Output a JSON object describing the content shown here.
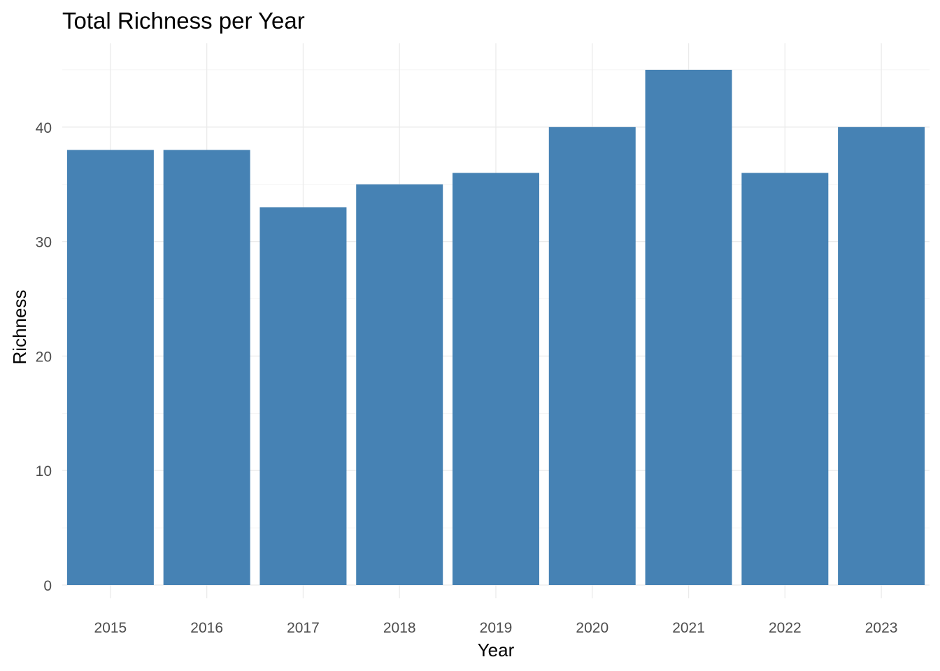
{
  "chart_data": {
    "type": "bar",
    "title": "Total Richness per Year",
    "xlabel": "Year",
    "ylabel": "Richness",
    "categories": [
      "2015",
      "2016",
      "2017",
      "2018",
      "2019",
      "2020",
      "2021",
      "2022",
      "2023"
    ],
    "values": [
      38,
      38,
      33,
      35,
      36,
      40,
      45,
      36,
      40
    ],
    "ylim": [
      0,
      47
    ],
    "yticks": [
      0,
      10,
      20,
      30,
      40
    ],
    "grid": true,
    "legend": "none",
    "colors": {
      "bar": "#4682B4"
    }
  }
}
